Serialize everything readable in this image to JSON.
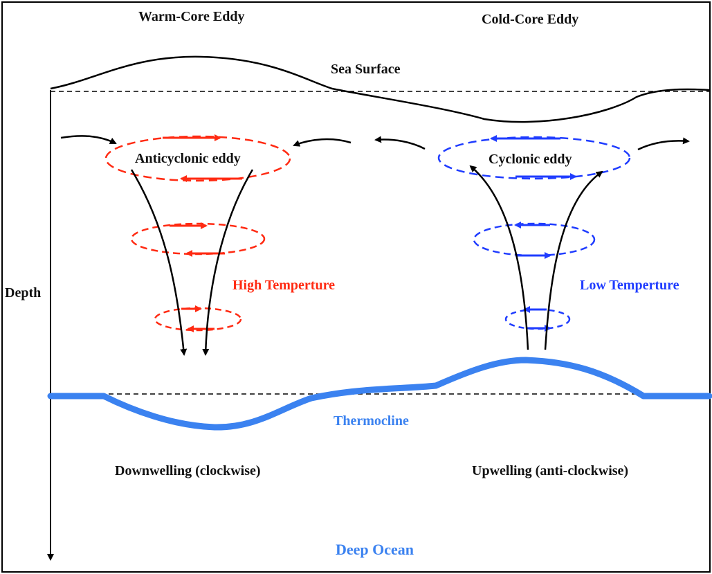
{
  "titles": {
    "warm": "Warm-Core Eddy",
    "cold": "Cold-Core Eddy"
  },
  "labels": {
    "sea_surface": "Sea Surface",
    "depth": "Depth",
    "anticyclonic": "Anticyclonic eddy",
    "cyclonic": "Cyclonic eddy",
    "high_temp": "High Temperture",
    "low_temp": "Low Temperture",
    "thermocline": "Thermocline",
    "downwelling": "Downwelling (clockwise)",
    "upwelling": "Upwelling (anti-clockwise)",
    "deep_ocean": "Deep Ocean"
  },
  "colors": {
    "warm": "#ff2a12",
    "cold": "#1f3cff",
    "thermocline": "#3b82f0",
    "ink": "#000000"
  }
}
